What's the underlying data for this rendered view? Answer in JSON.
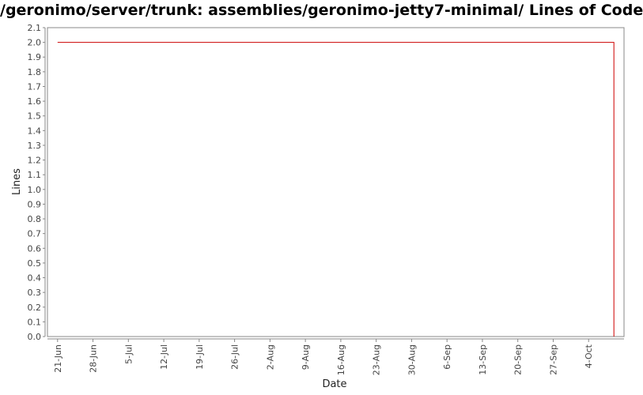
{
  "chart_data": {
    "type": "line",
    "title": "/geronimo/server/trunk: assemblies/geronimo-jetty7-minimal/ Lines of Code",
    "xlabel": "Date",
    "ylabel": "Lines",
    "ylim": [
      0.0,
      2.1
    ],
    "yticks": [
      "0.0",
      "0.1",
      "0.2",
      "0.3",
      "0.4",
      "0.5",
      "0.6",
      "0.7",
      "0.8",
      "0.9",
      "1.0",
      "1.1",
      "1.2",
      "1.3",
      "1.4",
      "1.5",
      "1.6",
      "1.7",
      "1.8",
      "1.9",
      "2.0",
      "2.1"
    ],
    "xticks": [
      "21-Jun",
      "28-Jun",
      "5-Jul",
      "12-Jul",
      "19-Jul",
      "26-Jul",
      "2-Aug",
      "9-Aug",
      "16-Aug",
      "23-Aug",
      "30-Aug",
      "6-Sep",
      "13-Sep",
      "20-Sep",
      "27-Sep",
      "4-Oct"
    ],
    "xlim": [
      "2009-06-19",
      "2009-10-11"
    ],
    "grid": false,
    "series": [
      {
        "color": "#cc0000",
        "x": [
          "2009-06-21",
          "2009-10-09",
          "2009-10-09"
        ],
        "y": [
          2.0,
          2.0,
          0.0
        ]
      }
    ]
  }
}
